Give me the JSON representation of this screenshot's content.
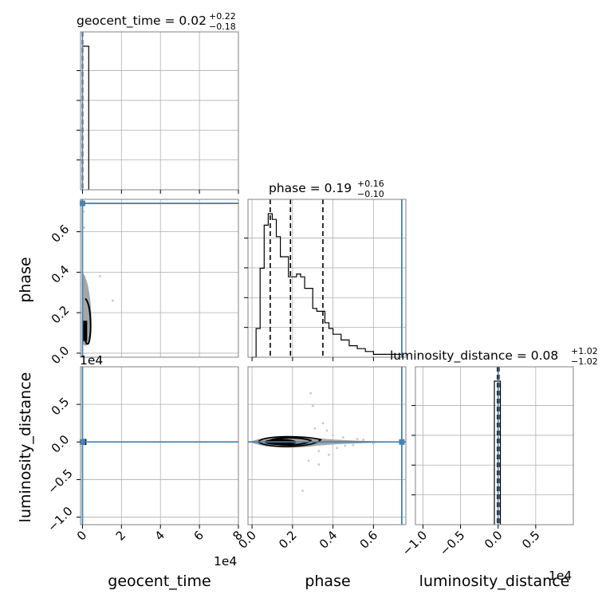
{
  "chart_data": {
    "type": "corner",
    "params": [
      "geocent_time",
      "phase",
      "luminosity_distance"
    ],
    "colors": {
      "truth": "#4682b4",
      "hist": "#000000",
      "grid": "#b0b0b0",
      "contour_fill": "#a6a6a6",
      "scatter": "#c8c8c8"
    },
    "titles": {
      "geocent_time": {
        "prefix": "geocent_time = 0.02",
        "sup": "+0.22",
        "sub": "−0.18"
      },
      "phase": {
        "prefix": "phase = 0.19",
        "sup": "+0.16",
        "sub": "−0.10"
      },
      "luminosity_distance": {
        "prefix": "luminosity_distance = 0.08",
        "sup": "+1.02",
        "sub": "−1.02"
      }
    },
    "axis_labels": {
      "geocent_time": "geocent_time",
      "phase": "phase",
      "luminosity_distance": "luminosity_distance"
    },
    "ranges": {
      "geocent_time": [
        -1000,
        80000
      ],
      "phase": [
        -0.02,
        0.76
      ],
      "luminosity_distance": [
        -11000,
        10000
      ]
    },
    "offset_labels": {
      "geocent_time_x": "1e4",
      "luminosity_distance_y": "1e4",
      "luminosity_distance_x": "1e4"
    },
    "ticks": {
      "geocent_time": {
        "values": [
          0,
          20000,
          40000,
          60000,
          80000
        ],
        "labels": [
          "0",
          "2",
          "4",
          "6",
          "8"
        ]
      },
      "phase": {
        "values": [
          0.0,
          0.2,
          0.4,
          0.6
        ],
        "labels": [
          "0.0",
          "0.2",
          "0.4",
          "0.6"
        ]
      },
      "luminosity_distance": {
        "values": [
          -10000,
          -5000,
          0,
          5000
        ],
        "labels": [
          "−1.0",
          "−0.5",
          "0.0",
          "0.5"
        ]
      }
    },
    "truths": {
      "geocent_time": 0,
      "phase": 0.74,
      "luminosity_distance": 0
    },
    "quantiles": {
      "geocent_time": [
        -0.16,
        0.02,
        0.24
      ],
      "phase": [
        0.09,
        0.19,
        0.35
      ],
      "luminosity_distance": [
        -0.94,
        0.08,
        1.1
      ]
    },
    "hist_geocent_time": {
      "edges": [
        0,
        3200
      ],
      "counts": [
        1.0
      ]
    },
    "hist_phase": {
      "edges": [
        0.0,
        0.02,
        0.04,
        0.06,
        0.08,
        0.1,
        0.12,
        0.14,
        0.16,
        0.18,
        0.2,
        0.22,
        0.24,
        0.26,
        0.28,
        0.3,
        0.32,
        0.34,
        0.36,
        0.38,
        0.4,
        0.42,
        0.44,
        0.46,
        0.48,
        0.5,
        0.52,
        0.54,
        0.56,
        0.58,
        0.6,
        0.62,
        0.64,
        0.66,
        0.68,
        0.7,
        0.72,
        0.74
      ],
      "counts": [
        0.0,
        0.2,
        0.62,
        0.92,
        1.0,
        0.96,
        0.84,
        0.7,
        0.7,
        0.56,
        0.56,
        0.58,
        0.56,
        0.48,
        0.48,
        0.34,
        0.32,
        0.32,
        0.24,
        0.2,
        0.16,
        0.16,
        0.12,
        0.12,
        0.08,
        0.08,
        0.06,
        0.06,
        0.04,
        0.04,
        0.02,
        0.02,
        0.02,
        0.02,
        0.02,
        0.02,
        0.02
      ]
    },
    "hist_luminosity_distance": {
      "edges": [
        -500,
        300
      ],
      "counts": [
        1.0
      ]
    },
    "scatter_phase_geocent": [
      {
        "x": 1000,
        "y": 0.2
      },
      {
        "x": 2000,
        "y": 0.12
      },
      {
        "x": 600,
        "y": 0.3
      },
      {
        "x": 1500,
        "y": 0.08
      },
      {
        "x": 9000,
        "y": 0.38
      },
      {
        "x": 15500,
        "y": 0.26
      },
      {
        "x": 800,
        "y": 0.62
      },
      {
        "x": 500,
        "y": 0.7
      }
    ],
    "scatter_ld_phase": [
      {
        "x": 0.29,
        "y": 6500
      },
      {
        "x": 0.3,
        "y": 4800
      },
      {
        "x": 0.35,
        "y": 2500
      },
      {
        "x": 0.28,
        "y": -2500
      },
      {
        "x": 0.33,
        "y": -3000
      },
      {
        "x": 0.25,
        "y": -6500
      },
      {
        "x": 0.4,
        "y": 900
      },
      {
        "x": 0.45,
        "y": 600
      },
      {
        "x": 0.5,
        "y": -400
      },
      {
        "x": 0.42,
        "y": -800
      },
      {
        "x": 0.37,
        "y": 1500
      },
      {
        "x": 0.55,
        "y": 300
      },
      {
        "x": 0.6,
        "y": -200
      },
      {
        "x": 0.33,
        "y": -1200
      },
      {
        "x": 0.31,
        "y": 1800
      },
      {
        "x": 0.38,
        "y": -1700
      },
      {
        "x": 0.46,
        "y": -500
      },
      {
        "x": 0.52,
        "y": 400
      }
    ]
  }
}
